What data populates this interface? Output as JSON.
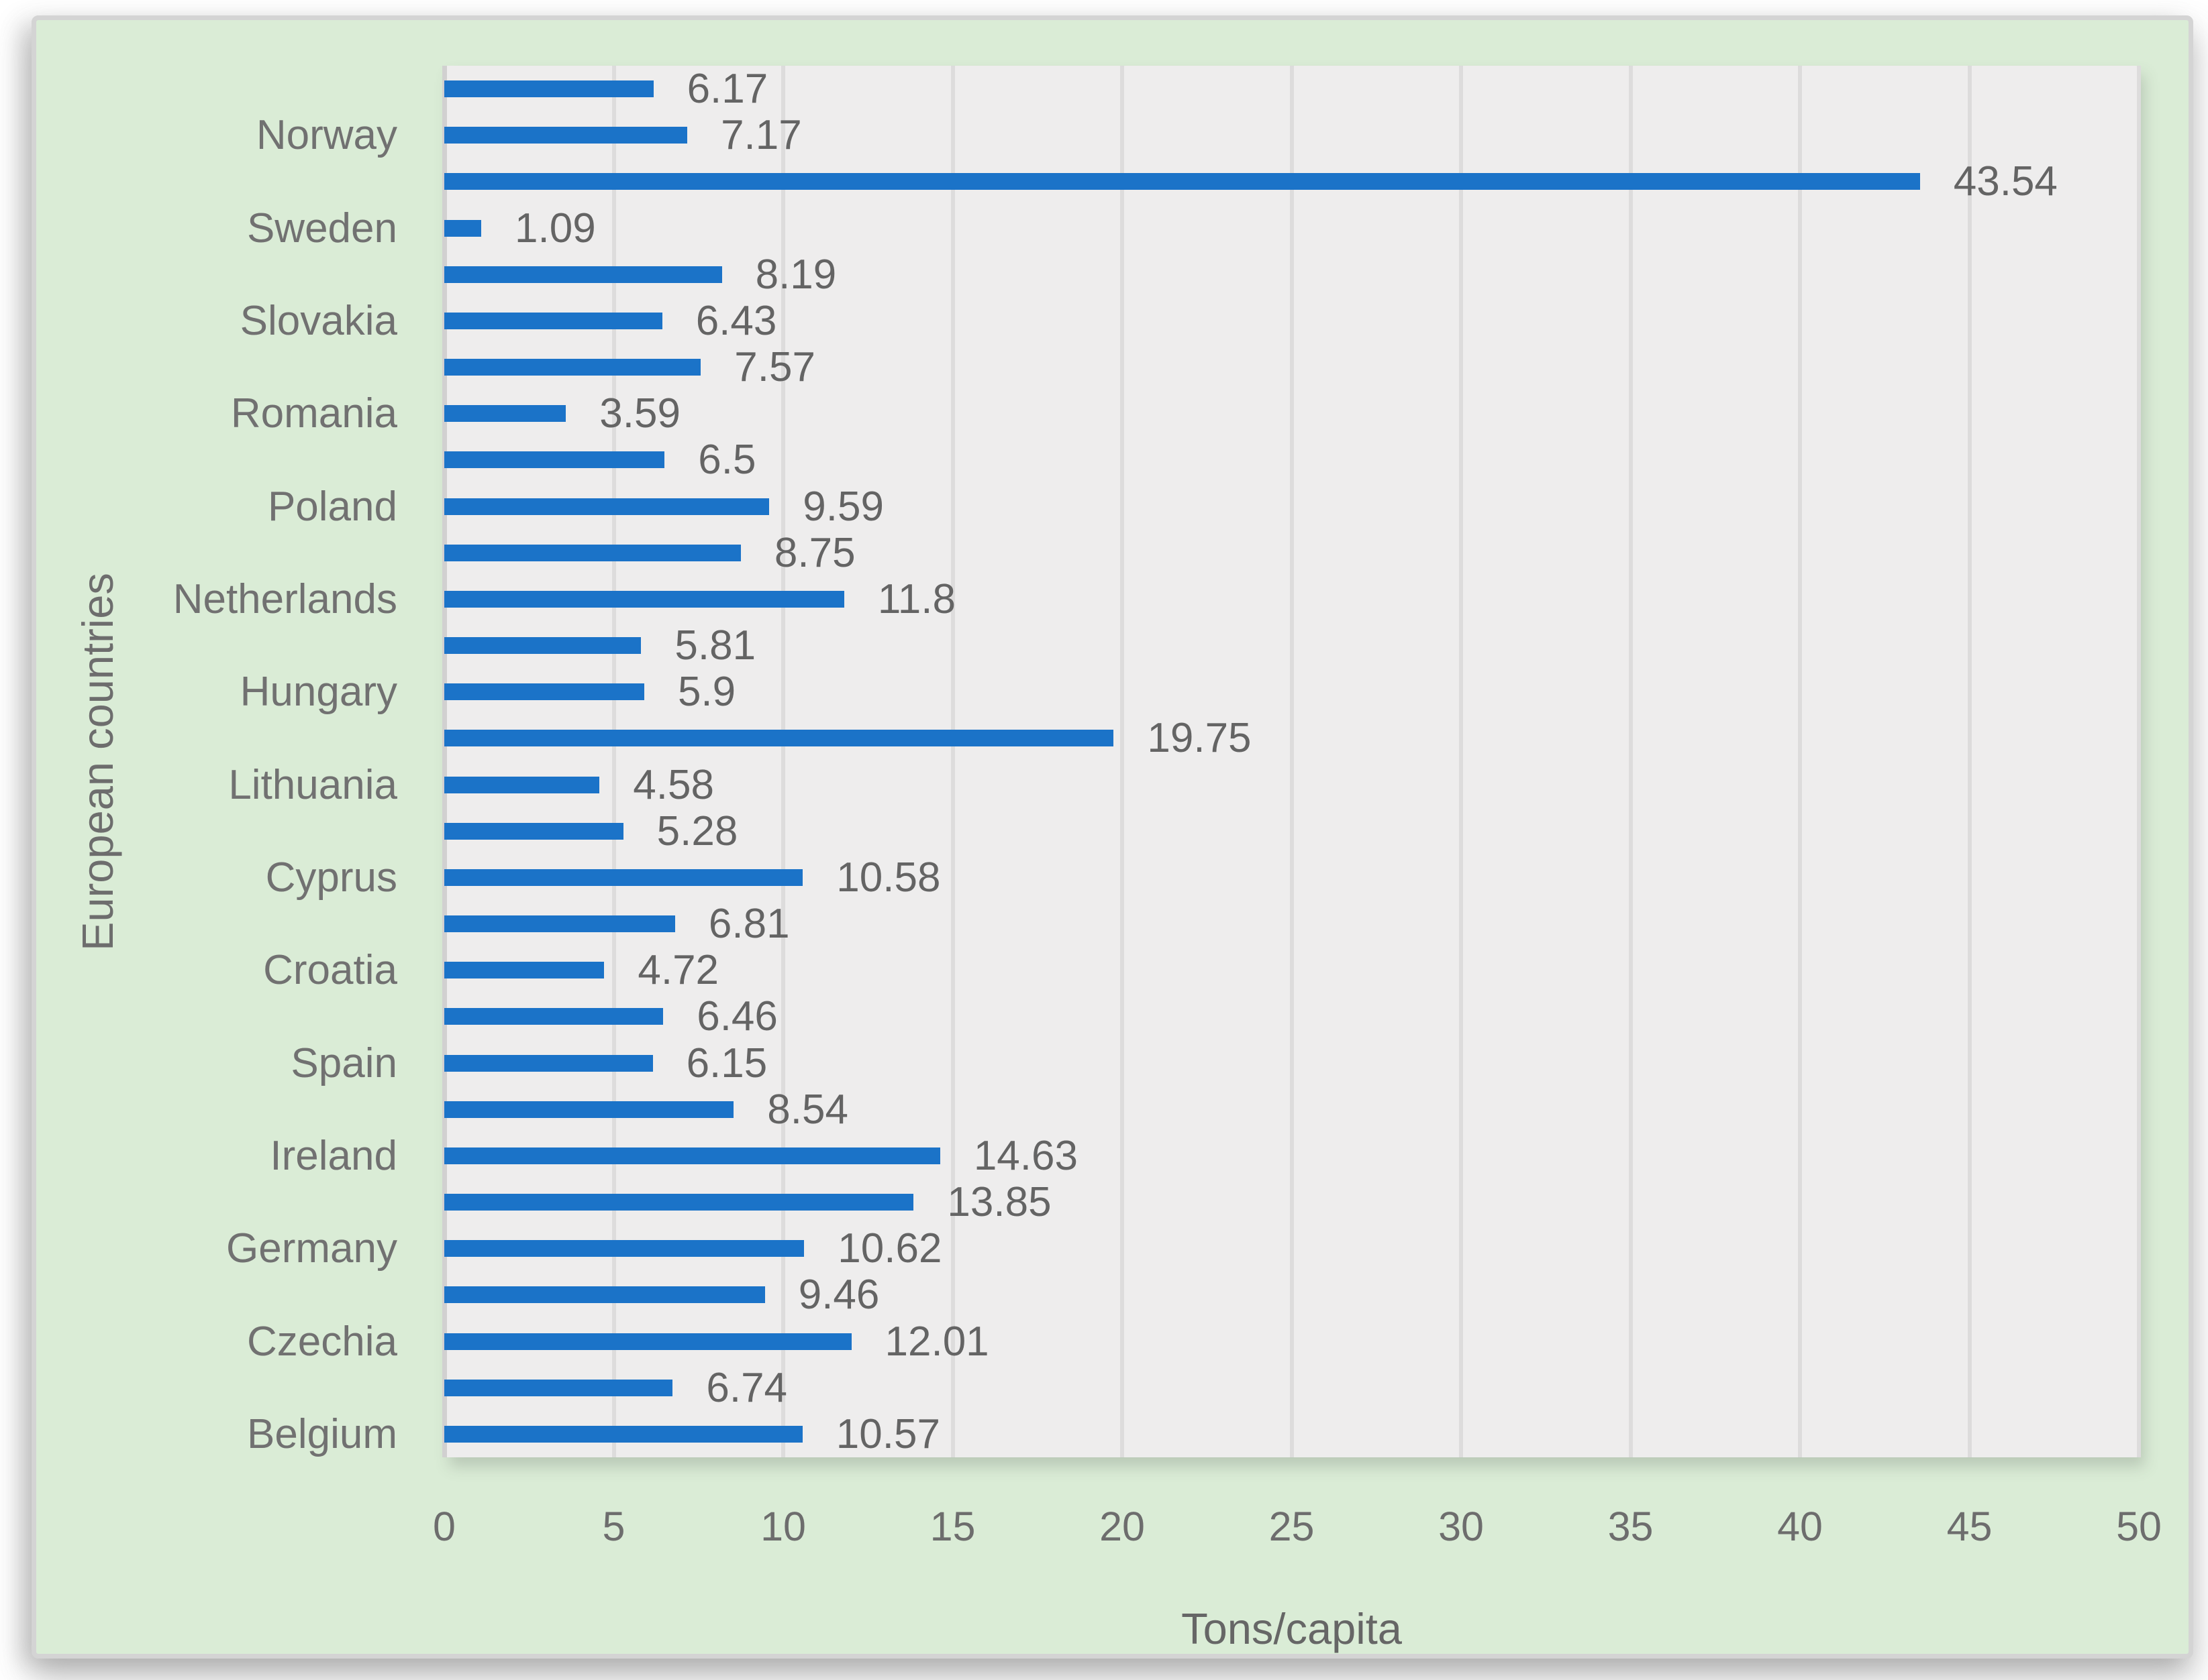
{
  "chart_data": {
    "type": "bar",
    "orientation": "horizontal",
    "title": "",
    "xlabel": "Tons/capita",
    "ylabel": "European countries",
    "xlim": [
      0,
      50
    ],
    "xticks": [
      0,
      5,
      10,
      15,
      20,
      25,
      30,
      35,
      40,
      45,
      50
    ],
    "grid": "vertical",
    "legend": "none",
    "value_labels": true,
    "category_label_interval": 2,
    "bars": [
      {
        "label": "",
        "value": 6.17
      },
      {
        "label": "Norway",
        "value": 7.17
      },
      {
        "label": "",
        "value": 43.54
      },
      {
        "label": "Sweden",
        "value": 1.09
      },
      {
        "label": "",
        "value": 8.19
      },
      {
        "label": "Slovakia",
        "value": 6.43
      },
      {
        "label": "",
        "value": 7.57
      },
      {
        "label": "Romania",
        "value": 3.59
      },
      {
        "label": "",
        "value": 6.5
      },
      {
        "label": "Poland",
        "value": 9.59
      },
      {
        "label": "",
        "value": 8.75
      },
      {
        "label": "Netherlands",
        "value": 11.8
      },
      {
        "label": "",
        "value": 5.81
      },
      {
        "label": "Hungary",
        "value": 5.9
      },
      {
        "label": "",
        "value": 19.75
      },
      {
        "label": "Lithuania",
        "value": 4.58
      },
      {
        "label": "",
        "value": 5.28
      },
      {
        "label": "Cyprus",
        "value": 10.58
      },
      {
        "label": "",
        "value": 6.81
      },
      {
        "label": "Croatia",
        "value": 4.72
      },
      {
        "label": "",
        "value": 6.46
      },
      {
        "label": "Spain",
        "value": 6.15
      },
      {
        "label": "",
        "value": 8.54
      },
      {
        "label": "Ireland",
        "value": 14.63
      },
      {
        "label": "",
        "value": 13.85
      },
      {
        "label": "Germany",
        "value": 10.62
      },
      {
        "label": "",
        "value": 9.46
      },
      {
        "label": "Czechia",
        "value": 12.01
      },
      {
        "label": "",
        "value": 6.74
      },
      {
        "label": "Belgium",
        "value": 10.57
      }
    ],
    "colors": {
      "bar": "#1b73c8",
      "plot_background": "#eeeded",
      "panel_background": "#daecd6",
      "panel_border": "#d4d4d4",
      "gridline": "#dddcdc",
      "axis_line": "#d1d0d0",
      "text": "#6d6d6d"
    }
  }
}
